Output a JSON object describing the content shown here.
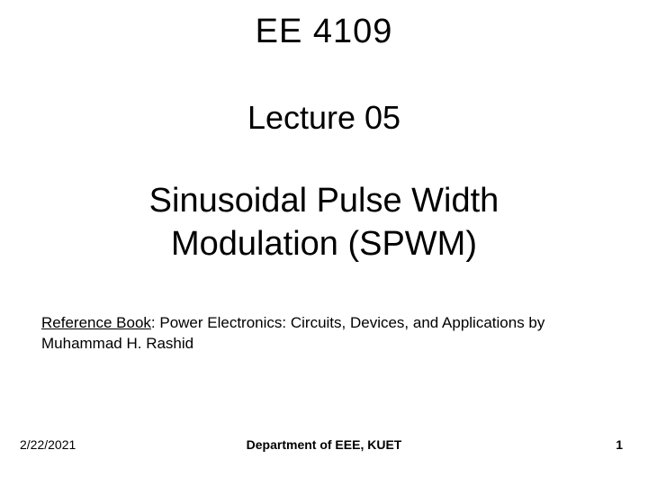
{
  "header": {
    "course_code": "EE 4109",
    "lecture_number": "Lecture 05"
  },
  "topic": {
    "line1": "Sinusoidal Pulse Width",
    "line2": "Modulation (SPWM)"
  },
  "reference": {
    "label": "Reference Book",
    "text": ": Power Electronics: Circuits, Devices, and Applications by Muhammad H. Rashid"
  },
  "footer": {
    "date": "2/22/2021",
    "department": "Department of EEE, KUET",
    "page": "1"
  },
  "styling": {
    "background_color": "#ffffff",
    "text_color": "#000000",
    "title_fontsize": 38,
    "subtitle_fontsize": 36,
    "body_fontsize": 17,
    "footer_fontsize": 14,
    "font_family": "Arial"
  }
}
